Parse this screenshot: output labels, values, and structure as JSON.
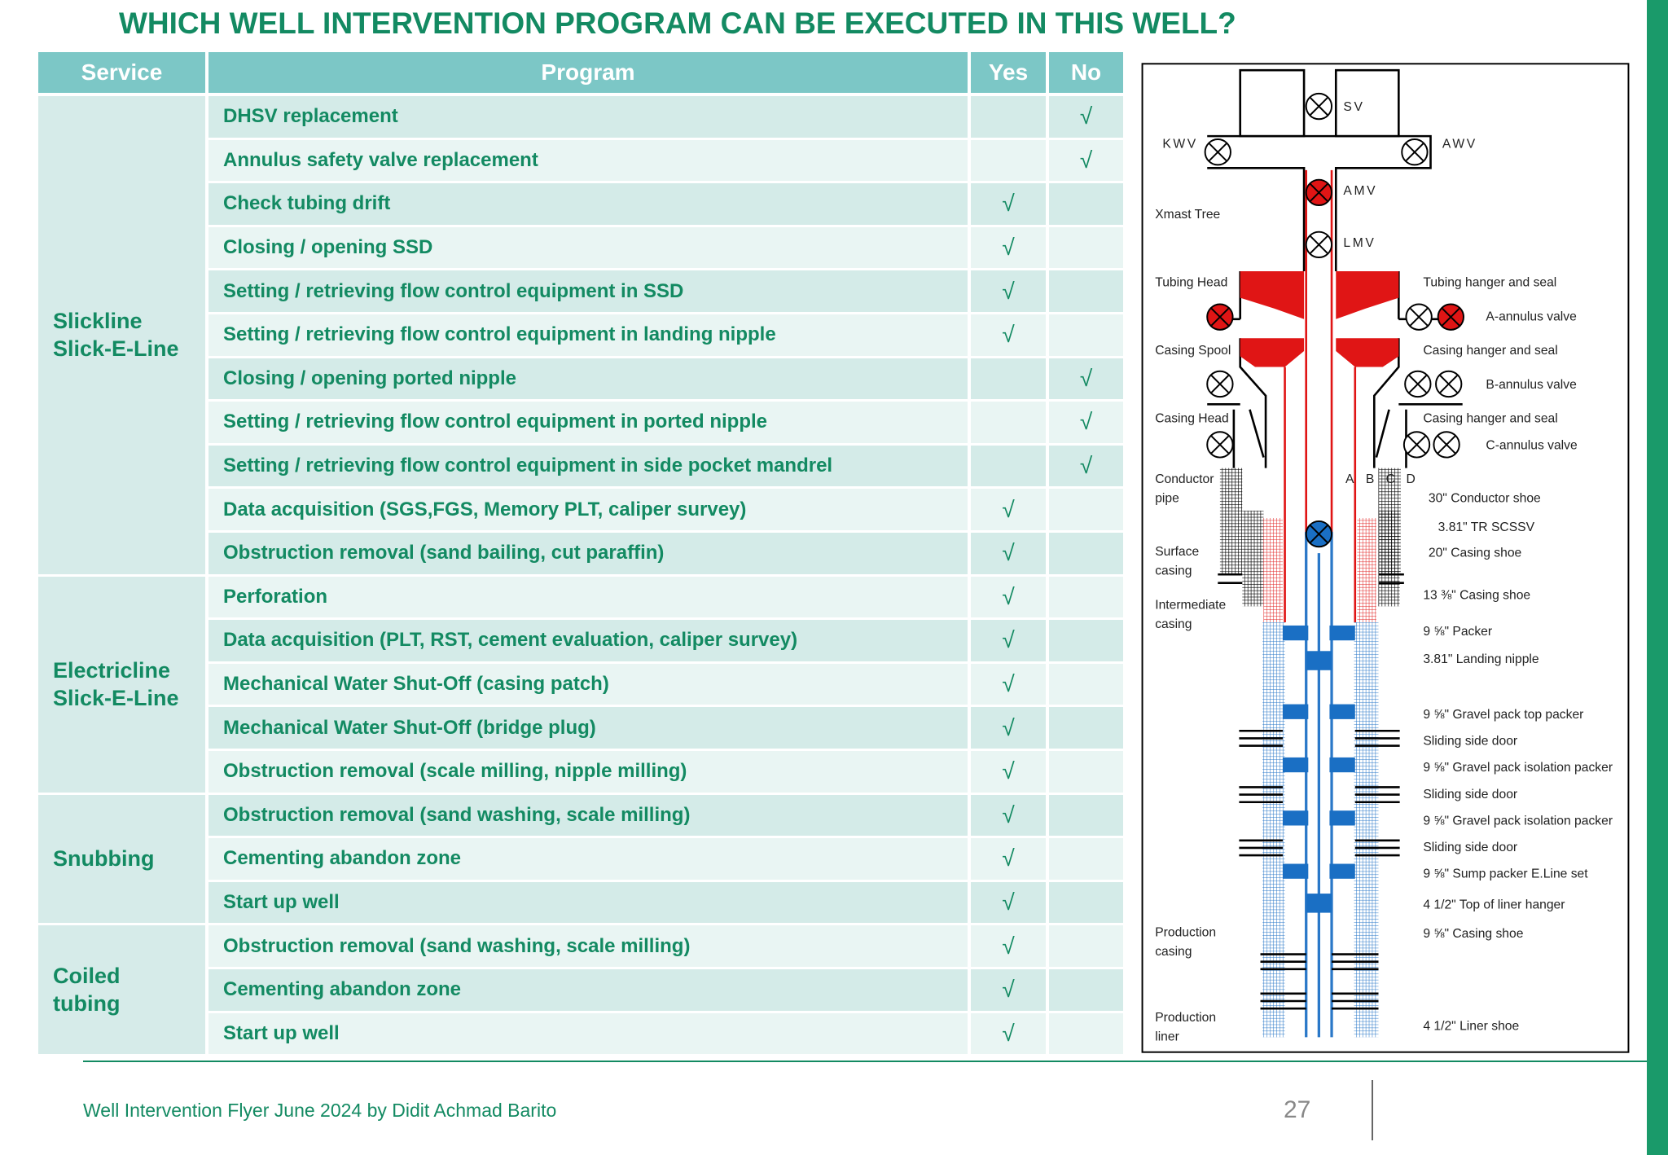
{
  "header": {
    "title": "WHICH WELL INTERVENTION PROGRAM CAN BE EXECUTED IN THIS WELL?"
  },
  "table": {
    "columns": [
      "Service",
      "Program",
      "Yes",
      "No"
    ],
    "groups": [
      {
        "service": [
          "Slickline",
          "Slick-E-Line"
        ],
        "rows": [
          {
            "program": "DHSV replacement",
            "no": "√"
          },
          {
            "program": "Annulus safety valve replacement",
            "no": "√"
          },
          {
            "program": "Check tubing drift",
            "yes": "√"
          },
          {
            "program": "Closing / opening SSD",
            "yes": "√"
          },
          {
            "program": "Setting / retrieving flow control equipment in SSD",
            "yes": "√"
          },
          {
            "program": "Setting / retrieving flow control equipment in landing nipple",
            "yes": "√"
          },
          {
            "program": "Closing / opening ported nipple",
            "no": "√"
          },
          {
            "program": "Setting / retrieving flow control equipment in ported nipple",
            "no": "√"
          },
          {
            "program": "Setting / retrieving flow control equipment in side pocket mandrel",
            "no": "√"
          },
          {
            "program": "Data acquisition (SGS,FGS, Memory PLT, caliper survey)",
            "yes": "√"
          },
          {
            "program": "Obstruction removal (sand bailing, cut paraffin)",
            "yes": "√"
          }
        ]
      },
      {
        "service": [
          "Electricline",
          "Slick-E-Line"
        ],
        "rows": [
          {
            "program": "Perforation",
            "yes": "√"
          },
          {
            "program": "Data acquisition (PLT, RST, cement evaluation, caliper survey)",
            "yes": "√"
          },
          {
            "program": "Mechanical Water Shut-Off (casing patch)",
            "yes": "√"
          },
          {
            "program": "Mechanical Water Shut-Off (bridge plug)",
            "yes": "√"
          },
          {
            "program": "Obstruction removal (scale milling, nipple milling)",
            "yes": "√"
          }
        ]
      },
      {
        "service": [
          "Snubbing"
        ],
        "rows": [
          {
            "program": "Obstruction removal (sand washing, scale milling)",
            "yes": "√"
          },
          {
            "program": "Cementing abandon zone",
            "yes": "√"
          },
          {
            "program": "Start up well",
            "yes": "√"
          }
        ]
      },
      {
        "service": [
          "Coiled",
          "tubing"
        ],
        "rows": [
          {
            "program": "Obstruction removal (sand washing, scale milling)",
            "yes": "√"
          },
          {
            "program": "Cementing abandon zone",
            "yes": "√"
          },
          {
            "program": "Start up well",
            "yes": "√"
          }
        ]
      }
    ]
  },
  "diagram": {
    "valves": [
      "SV",
      "KWV",
      "AWV",
      "AMV",
      "LMV"
    ],
    "annulus": [
      "A",
      "B",
      "C",
      "D"
    ],
    "left_labels": [
      [
        "Xmast Tree"
      ],
      [
        "Tubing Head"
      ],
      [
        "Casing Spool"
      ],
      [
        "Casing Head"
      ],
      [
        "Conductor",
        "pipe"
      ],
      [
        "Surface",
        "casing"
      ],
      [
        "Intermediate",
        "casing"
      ],
      [
        "Production",
        "casing"
      ],
      [
        "Production",
        "liner"
      ]
    ],
    "right_labels": [
      "Tubing hanger and seal",
      "A-annulus valve",
      "Casing hanger and seal",
      "B-annulus valve",
      "Casing hanger and seal",
      "C-annulus valve",
      "30\" Conductor shoe",
      "3.81\" TR SCSSV",
      "20\" Casing shoe",
      "13 ⅜\" Casing shoe",
      "9 ⅝\" Packer",
      "3.81\" Landing nipple",
      "9 ⅝\" Gravel pack top packer",
      "Sliding side door",
      "9 ⅝\" Gravel pack isolation packer",
      "Sliding side door",
      "9 ⅝\" Gravel pack isolation packer",
      "Sliding side door",
      "9 ⅝\" Sump packer E.Line set",
      "4 1/2\" Top of liner hanger",
      "9 ⅝\" Casing shoe",
      "4 1/2\" Liner shoe"
    ]
  },
  "footer": {
    "text": "Well Intervention Flyer June 2024 by Didit Achmad Barito",
    "page": "27"
  }
}
